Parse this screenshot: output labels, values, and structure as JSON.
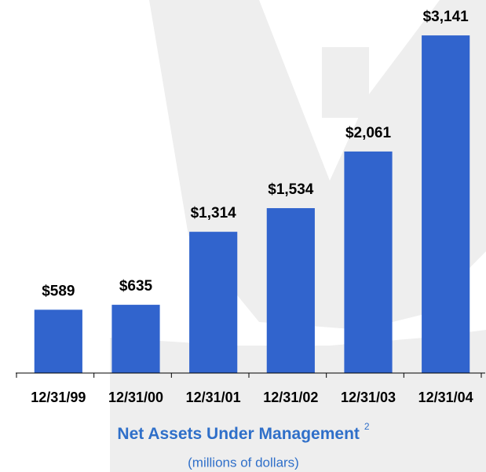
{
  "chart_data": {
    "type": "bar",
    "title": "Net Assets Under Management",
    "title_note": "2",
    "subtitle": "(millions of dollars)",
    "categories": [
      "12/31/99",
      "12/31/00",
      "12/31/01",
      "12/31/02",
      "12/31/03",
      "12/31/04"
    ],
    "values": [
      589,
      635,
      1314,
      1534,
      2061,
      3141
    ],
    "value_labels": [
      "$589",
      "$635",
      "$1,314",
      "$1,534",
      "$2,061",
      "$3,141"
    ],
    "color": "#3164cd",
    "ylim": [
      0,
      3200
    ]
  }
}
